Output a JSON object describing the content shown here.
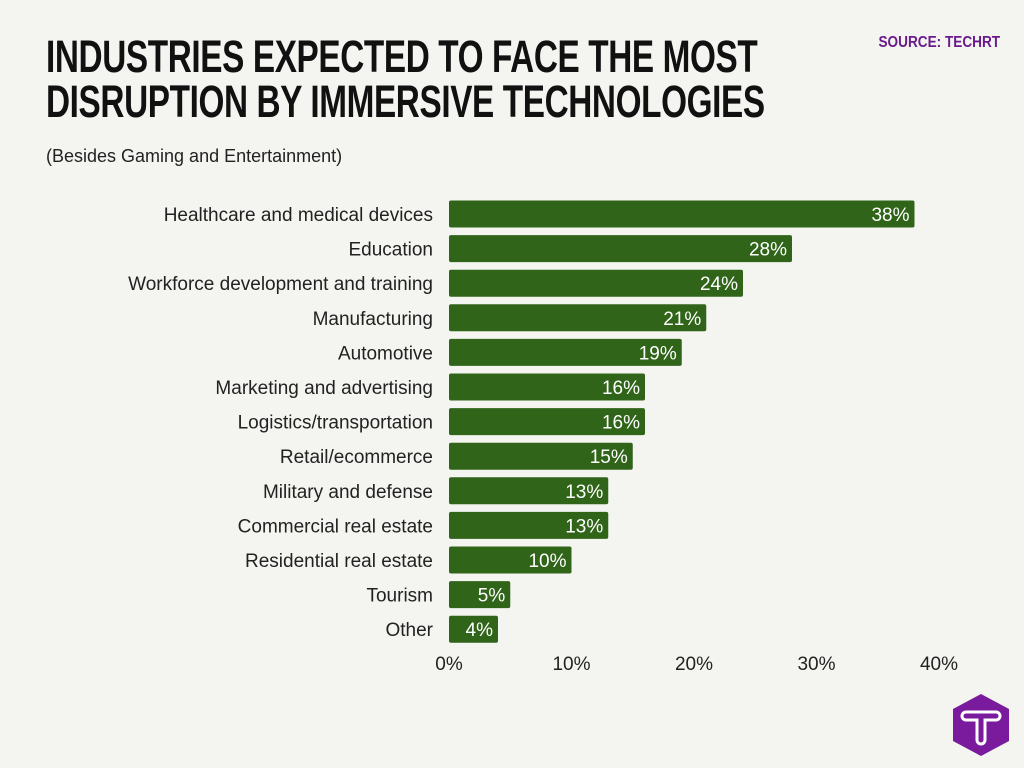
{
  "title_line1": "INDUSTRIES EXPECTED TO FACE THE MOST",
  "title_line2": "DISRUPTION BY IMMERSIVE TECHNOLOGIES",
  "subtitle": "(Besides Gaming and Entertainment)",
  "source": "SOURCE: TECHRT",
  "logo": "T",
  "chart_data": {
    "type": "bar",
    "orientation": "horizontal",
    "categories": [
      "Healthcare and medical devices",
      "Education",
      "Workforce development and training",
      "Manufacturing",
      "Automotive",
      "Marketing and advertising",
      "Logistics/transportation",
      "Retail/ecommerce",
      "Military and defense",
      "Commercial real estate",
      "Residential real estate",
      "Tourism",
      "Other"
    ],
    "values": [
      38,
      28,
      24,
      21,
      19,
      16,
      16,
      15,
      13,
      13,
      10,
      5,
      4
    ],
    "data_labels": [
      "38%",
      "28%",
      "24%",
      "21%",
      "19%",
      "16%",
      "16%",
      "15%",
      "13%",
      "13%",
      "10%",
      "5%",
      "4%"
    ],
    "xlim": [
      0,
      40
    ],
    "xticks": [
      0,
      10,
      20,
      30,
      40
    ],
    "xtick_labels": [
      "0%",
      "10%",
      "20%",
      "30%",
      "40%"
    ],
    "grid": false,
    "bar_color": "#2f6419",
    "label_color": "#ffffff"
  },
  "colors": {
    "background": "#f4f4f0",
    "accent": "#6b1a8c"
  }
}
